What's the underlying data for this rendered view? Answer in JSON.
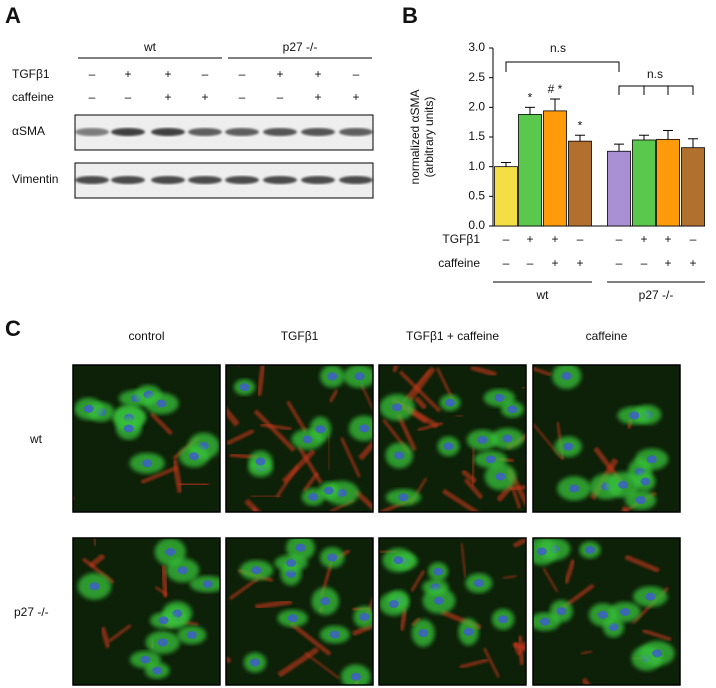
{
  "panel_a": {
    "label": "A",
    "groups": [
      "wt",
      "p27 -/-"
    ],
    "rows": [
      {
        "name": "TGFβ1",
        "marks": [
          "–",
          "+",
          "+",
          "–",
          "–",
          "+",
          "+",
          "–"
        ]
      },
      {
        "name": "caffeine",
        "marks": [
          "–",
          "–",
          "+",
          "+",
          "–",
          "–",
          "+",
          "+"
        ]
      }
    ],
    "blots": [
      "αSMA",
      "Vimentin"
    ]
  },
  "chart_data": {
    "type": "bar",
    "label": "B",
    "y_label": [
      "normalized αSMA",
      "(arbitrary units)"
    ],
    "categories": [
      null,
      null,
      null,
      null,
      null,
      null,
      null,
      null
    ],
    "values": [
      1.0,
      1.88,
      1.94,
      1.43,
      1.26,
      1.45,
      1.46,
      1.32
    ],
    "errors": [
      0.07,
      0.12,
      0.2,
      0.1,
      0.12,
      0.08,
      0.15,
      0.15
    ],
    "colors": [
      "#f3df45",
      "#5ac84c",
      "#ff9a0a",
      "#b2702e",
      "#a890d2",
      "#5ac84c",
      "#ff9a0a",
      "#b2702e"
    ],
    "annotations": [
      null,
      "*",
      "# *",
      "*",
      null,
      null,
      null,
      null
    ],
    "conditions": [
      {
        "name": "TGFβ1",
        "marks": [
          "–",
          "+",
          "+",
          "–",
          "–",
          "+",
          "+",
          "–"
        ]
      },
      {
        "name": "caffeine",
        "marks": [
          "–",
          "–",
          "+",
          "+",
          "–",
          "–",
          "+",
          "+"
        ]
      }
    ],
    "groups": [
      "wt",
      "p27 -/-"
    ],
    "significance": [
      "n.s",
      "n.s"
    ],
    "ylim": [
      0,
      3
    ],
    "yticks": [
      {
        "value": 0,
        "label": "0.0"
      },
      0.5,
      {
        "value": 1,
        "label": "1.0"
      },
      1.5,
      {
        "value": 2,
        "label": "2.0"
      },
      2.5,
      {
        "value": 3,
        "label": "3.0"
      }
    ]
  },
  "panel_c": {
    "label": "C",
    "columns": [
      "control",
      "TGFβ1",
      "TGFβ1 + caffeine",
      "caffeine"
    ],
    "rows": [
      "wt",
      "p27 -/-"
    ]
  }
}
